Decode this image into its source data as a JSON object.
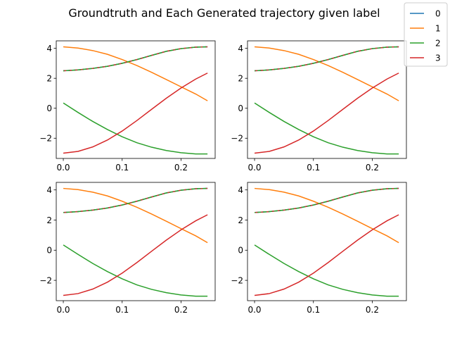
{
  "chart_data": {
    "type": "line",
    "title": "Groundtruth and Each Generated trajectory given label",
    "legend": {
      "placement": "top-right",
      "entries": [
        "0",
        "1",
        "2",
        "3"
      ]
    },
    "colors": {
      "0": "#1f77b4",
      "1": "#ff7f0e",
      "2": "#2ca02c",
      "3": "#d62728"
    },
    "xlim": [
      -0.012,
      0.258
    ],
    "ylim": [
      -3.35,
      4.5
    ],
    "xticks": [
      0.0,
      0.1,
      0.2
    ],
    "xtick_labels": [
      "0.0",
      "0.1",
      "0.2"
    ],
    "yticks": [
      -2,
      0,
      2,
      4
    ],
    "ytick_labels": [
      "−2",
      "0",
      "2",
      "4"
    ],
    "x": [
      0.0,
      0.025,
      0.05,
      0.075,
      0.1,
      0.125,
      0.15,
      0.175,
      0.2,
      0.225,
      0.245
    ],
    "series": [
      {
        "name": "0",
        "values": [
          2.5,
          2.56,
          2.66,
          2.8,
          3.0,
          3.25,
          3.53,
          3.8,
          3.98,
          4.08,
          4.1
        ]
      },
      {
        "name": "1",
        "values": [
          4.1,
          4.02,
          3.85,
          3.6,
          3.25,
          2.85,
          2.4,
          1.92,
          1.43,
          0.95,
          0.5
        ]
      },
      {
        "name": "2",
        "values": [
          0.35,
          -0.28,
          -0.88,
          -1.42,
          -1.9,
          -2.3,
          -2.6,
          -2.82,
          -2.97,
          -3.05,
          -3.05
        ]
      },
      {
        "name": "3",
        "values": [
          -3.0,
          -2.88,
          -2.58,
          -2.12,
          -1.52,
          -0.82,
          -0.07,
          0.67,
          1.35,
          1.95,
          2.35
        ]
      }
    ],
    "generated": [
      {
        "label": "0",
        "dashed": true,
        "colors": [
          "#d62728",
          "#2ca02c"
        ],
        "values": [
          2.5,
          2.56,
          2.66,
          2.8,
          3.0,
          3.25,
          3.53,
          3.8,
          3.98,
          4.08,
          4.1
        ]
      }
    ],
    "panels": 4
  }
}
